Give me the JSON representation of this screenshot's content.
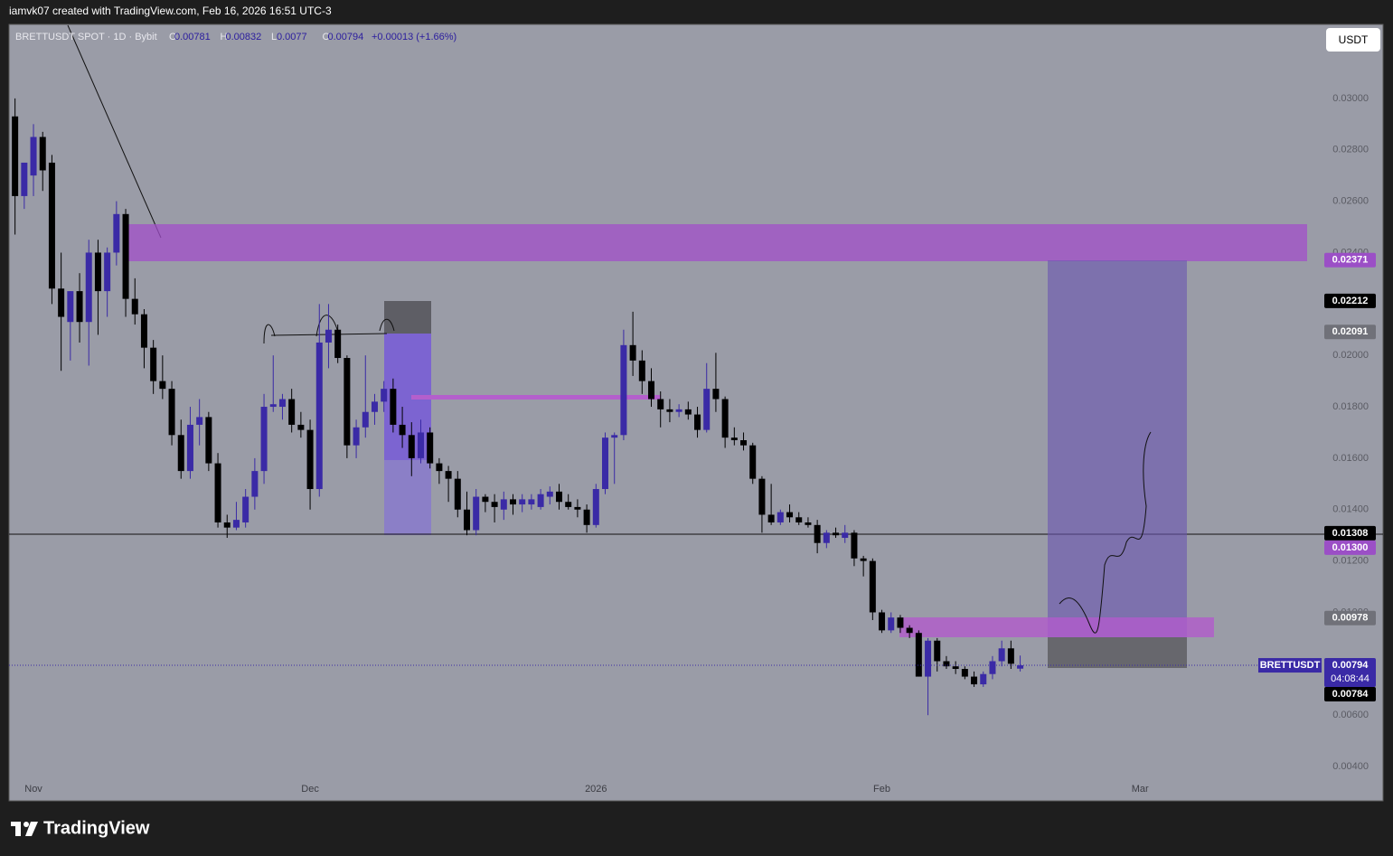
{
  "chart_data": {
    "type": "candlestick",
    "caption": "iamvk07 created with TradingView.com, Feb 16, 2026 16:51 UTC-3",
    "brand": "TradingView",
    "currency": "USDT",
    "legend": {
      "symbol": "BRETTUSDT SPOT · 1D · Bybit",
      "items": [
        {
          "label": "O",
          "value": 0.00781
        },
        {
          "label": "H",
          "value": 0.00832
        },
        {
          "label": "L",
          "value": 0.0077
        },
        {
          "label": "C",
          "value": 0.00794
        }
      ],
      "change": "+0.00013 (+1.66%)"
    },
    "up_color": "#3a2aa6",
    "down_color": "#000000",
    "grid": false,
    "xlim": [
      -2.65,
      139.0
    ],
    "xticks": [
      {
        "value": 0,
        "label": "Nov"
      },
      {
        "value": 30,
        "label": "Dec"
      },
      {
        "value": 61,
        "label": "2026"
      },
      {
        "value": 92,
        "label": "Feb"
      },
      {
        "value": 120,
        "label": "Mar"
      }
    ],
    "ylim": [
      0.00358,
      0.03288
    ],
    "yticks": [
      {
        "value": 0.03,
        "label": "0.03000"
      },
      {
        "value": 0.028,
        "label": "0.02800"
      },
      {
        "value": 0.026,
        "label": "0.02600"
      },
      {
        "value": 0.024,
        "label": "0.02400"
      },
      {
        "value": 0.02,
        "label": "0.02000"
      },
      {
        "value": 0.018,
        "label": "0.01800"
      },
      {
        "value": 0.016,
        "label": "0.01600"
      },
      {
        "value": 0.014,
        "label": "0.01400"
      },
      {
        "value": 0.012,
        "label": "0.01200"
      },
      {
        "value": 0.01,
        "label": "0.01000"
      },
      {
        "value": 0.006,
        "label": "0.00600"
      },
      {
        "value": 0.004,
        "label": "0.00400"
      }
    ],
    "price_markers": [
      {
        "value": 0.02371,
        "color": "#9b4fc6"
      },
      {
        "value": 0.02212,
        "color": "#000000"
      },
      {
        "value": 0.02091,
        "color": "#707179"
      },
      {
        "value": 0.01308,
        "color": "#000000"
      },
      {
        "value": 0.013,
        "label": "0.01300",
        "color": "#9b4fc6"
      },
      {
        "value": 0.00978,
        "color": "#707179"
      },
      {
        "value": 0.00794,
        "color": "#3a2aa6",
        "tag": "BRETTUSDT",
        "countdown": "04:08:44"
      },
      {
        "value": 0.00784,
        "color": "#000000"
      }
    ],
    "x": [
      -2,
      -1,
      0,
      1,
      2,
      3,
      4,
      5,
      6,
      7,
      8,
      9,
      10,
      11,
      12,
      13,
      14,
      15,
      16,
      17,
      18,
      19,
      20,
      21,
      22,
      23,
      24,
      25,
      26,
      27,
      28,
      29,
      30,
      31,
      32,
      33,
      34,
      35,
      36,
      37,
      38,
      39,
      40,
      41,
      42,
      43,
      44,
      45,
      46,
      47,
      48,
      49,
      50,
      51,
      52,
      53,
      54,
      55,
      56,
      57,
      58,
      59,
      60,
      61,
      62,
      63,
      64,
      65,
      66,
      67,
      68,
      69,
      70,
      71,
      72,
      73,
      74,
      75,
      76,
      77,
      78,
      79,
      80,
      81,
      82,
      83,
      84,
      85,
      86,
      87,
      88,
      89,
      90,
      91,
      92,
      93,
      94,
      95,
      96,
      97,
      98,
      99,
      100,
      101,
      102,
      103,
      104,
      105,
      106,
      107
    ],
    "open": [
      0.0293,
      0.0262,
      0.027,
      0.0285,
      0.0275,
      0.0226,
      0.0213,
      0.0225,
      0.0213,
      0.024,
      0.0225,
      0.024,
      0.0255,
      0.0222,
      0.0216,
      0.0203,
      0.019,
      0.0187,
      0.0169,
      0.0155,
      0.0173,
      0.0176,
      0.0158,
      0.0135,
      0.0133,
      0.0135,
      0.0145,
      0.0155,
      0.018,
      0.018,
      0.0183,
      0.0173,
      0.0171,
      0.0148,
      0.0205,
      0.021,
      0.0199,
      0.0165,
      0.0172,
      0.0178,
      0.0182,
      0.0187,
      0.0173,
      0.0169,
      0.016,
      0.017,
      0.0158,
      0.0155,
      0.0152,
      0.014,
      0.0132,
      0.0145,
      0.0143,
      0.014,
      0.0144,
      0.0142,
      0.0142,
      0.0141,
      0.0145,
      0.0147,
      0.0143,
      0.0141,
      0.014,
      0.0134,
      0.0148,
      0.0168,
      0.0169,
      0.0204,
      0.0198,
      0.019,
      0.0183,
      0.0179,
      0.0178,
      0.0179,
      0.0177,
      0.0171,
      0.0187,
      0.0183,
      0.0168,
      0.0167,
      0.0165,
      0.0152,
      0.0138,
      0.0135,
      0.0139,
      0.0137,
      0.0135,
      0.0134,
      0.0127,
      0.0131,
      0.0129,
      0.0131,
      0.0121,
      0.012,
      0.01,
      0.0093,
      0.0098,
      0.0094,
      0.0092,
      0.0075,
      0.0089,
      0.0081,
      0.0079,
      0.0078,
      0.0075,
      0.0072,
      0.0076,
      0.0081,
      0.0086,
      0.00781
    ],
    "high": [
      0.03,
      0.0275,
      0.029,
      0.0287,
      0.0278,
      0.024,
      0.0225,
      0.0232,
      0.0245,
      0.0245,
      0.0242,
      0.026,
      0.0257,
      0.023,
      0.0218,
      0.0206,
      0.02,
      0.019,
      0.0175,
      0.018,
      0.0183,
      0.0178,
      0.0162,
      0.0138,
      0.0143,
      0.0148,
      0.016,
      0.0185,
      0.02,
      0.0185,
      0.0187,
      0.0178,
      0.0175,
      0.022,
      0.022,
      0.0212,
      0.02,
      0.0175,
      0.02,
      0.0185,
      0.019,
      0.0191,
      0.018,
      0.0174,
      0.0175,
      0.0172,
      0.016,
      0.0157,
      0.0155,
      0.0147,
      0.0148,
      0.0146,
      0.0146,
      0.0147,
      0.0146,
      0.0146,
      0.0146,
      0.0148,
      0.0149,
      0.015,
      0.0146,
      0.0144,
      0.0142,
      0.015,
      0.017,
      0.017,
      0.021,
      0.0217,
      0.0202,
      0.0195,
      0.0186,
      0.0183,
      0.0181,
      0.0182,
      0.018,
      0.0197,
      0.0201,
      0.0184,
      0.0172,
      0.017,
      0.0166,
      0.0153,
      0.015,
      0.014,
      0.0142,
      0.0139,
      0.0137,
      0.0136,
      0.0132,
      0.0133,
      0.0134,
      0.0132,
      0.0122,
      0.0121,
      0.0101,
      0.01,
      0.0099,
      0.0095,
      0.0093,
      0.009,
      0.009,
      0.0083,
      0.0081,
      0.0079,
      0.0077,
      0.0077,
      0.0083,
      0.0089,
      0.0089,
      0.00832
    ],
    "low": [
      0.0247,
      0.0257,
      0.0262,
      0.0264,
      0.022,
      0.0194,
      0.0198,
      0.0205,
      0.0196,
      0.0208,
      0.0215,
      0.0235,
      0.0215,
      0.0212,
      0.0195,
      0.0185,
      0.0183,
      0.0165,
      0.0152,
      0.0152,
      0.0165,
      0.0155,
      0.0133,
      0.0129,
      0.0132,
      0.0133,
      0.014,
      0.015,
      0.0178,
      0.0175,
      0.017,
      0.0168,
      0.014,
      0.0145,
      0.0195,
      0.0197,
      0.016,
      0.016,
      0.0168,
      0.0173,
      0.0178,
      0.017,
      0.0164,
      0.0153,
      0.0158,
      0.0156,
      0.015,
      0.0143,
      0.0137,
      0.013,
      0.013,
      0.0139,
      0.0135,
      0.0136,
      0.0138,
      0.0139,
      0.014,
      0.014,
      0.0142,
      0.014,
      0.014,
      0.0137,
      0.0131,
      0.0133,
      0.0146,
      0.015,
      0.0167,
      0.0192,
      0.0185,
      0.018,
      0.0172,
      0.0174,
      0.0176,
      0.0175,
      0.0168,
      0.017,
      0.0178,
      0.0164,
      0.0165,
      0.0163,
      0.015,
      0.0131,
      0.0134,
      0.0134,
      0.0135,
      0.0134,
      0.0133,
      0.0123,
      0.0125,
      0.0129,
      0.0127,
      0.0118,
      0.0114,
      0.0097,
      0.0092,
      0.0092,
      0.0092,
      0.009,
      0.0075,
      0.006,
      0.0077,
      0.0078,
      0.0076,
      0.0074,
      0.0071,
      0.0071,
      0.0074,
      0.0079,
      0.0078,
      0.0077
    ],
    "close": [
      0.0262,
      0.0275,
      0.0285,
      0.0272,
      0.0226,
      0.0215,
      0.0225,
      0.0213,
      0.024,
      0.0225,
      0.024,
      0.0255,
      0.0222,
      0.0216,
      0.0203,
      0.019,
      0.0187,
      0.0169,
      0.0155,
      0.0173,
      0.0176,
      0.0158,
      0.0135,
      0.0133,
      0.0136,
      0.0145,
      0.0155,
      0.018,
      0.0181,
      0.0183,
      0.0173,
      0.0171,
      0.0148,
      0.0205,
      0.021,
      0.0199,
      0.0165,
      0.0172,
      0.0178,
      0.0182,
      0.0187,
      0.0173,
      0.0169,
      0.016,
      0.017,
      0.0158,
      0.0155,
      0.0152,
      0.014,
      0.0132,
      0.0145,
      0.0143,
      0.0141,
      0.0144,
      0.0142,
      0.0144,
      0.0144,
      0.0146,
      0.0147,
      0.0143,
      0.0141,
      0.014,
      0.0134,
      0.0148,
      0.0168,
      0.0169,
      0.0204,
      0.0198,
      0.019,
      0.0183,
      0.0179,
      0.0178,
      0.0179,
      0.0177,
      0.0171,
      0.0187,
      0.0183,
      0.0168,
      0.0167,
      0.0165,
      0.0152,
      0.0138,
      0.0135,
      0.0139,
      0.0137,
      0.0135,
      0.0134,
      0.0127,
      0.0131,
      0.013,
      0.0131,
      0.0121,
      0.012,
      0.01,
      0.0093,
      0.0098,
      0.0094,
      0.0092,
      0.0075,
      0.0089,
      0.0081,
      0.0079,
      0.0078,
      0.0075,
      0.0072,
      0.0076,
      0.0081,
      0.0086,
      0.008,
      0.00794
    ]
  }
}
